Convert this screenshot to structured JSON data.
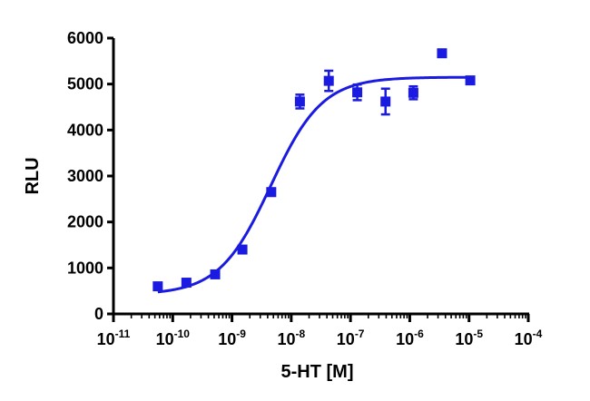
{
  "chart_data": {
    "type": "scatter",
    "title": "",
    "xlabel": "5-HT [M]",
    "ylabel": "RLU",
    "x_scale": "log",
    "xlim": [
      1e-11,
      0.0001
    ],
    "ylim": [
      0,
      6000
    ],
    "x_ticks": [
      {
        "base": "10",
        "exp": "-11",
        "value": 1e-11
      },
      {
        "base": "10",
        "exp": "-10",
        "value": 1e-10
      },
      {
        "base": "10",
        "exp": "-9",
        "value": 1e-09
      },
      {
        "base": "10",
        "exp": "-8",
        "value": 1e-08
      },
      {
        "base": "10",
        "exp": "-7",
        "value": 1e-07
      },
      {
        "base": "10",
        "exp": "-6",
        "value": 1e-06
      },
      {
        "base": "10",
        "exp": "-5",
        "value": 1e-05
      },
      {
        "base": "10",
        "exp": "-4",
        "value": 0.0001
      }
    ],
    "y_ticks": [
      {
        "label": "0",
        "value": 0
      },
      {
        "label": "1000",
        "value": 1000
      },
      {
        "label": "2000",
        "value": 2000
      },
      {
        "label": "3000",
        "value": 3000
      },
      {
        "label": "4000",
        "value": 4000
      },
      {
        "label": "5000",
        "value": 5000
      },
      {
        "label": "6000",
        "value": 6000
      }
    ],
    "color": "#1a1ae0",
    "grid": false,
    "legend": "none",
    "points": [
      {
        "x": 5.6e-11,
        "y": 600,
        "err": 40
      },
      {
        "x": 1.7e-10,
        "y": 680,
        "err": 40
      },
      {
        "x": 5.2e-10,
        "y": 860,
        "err": 40
      },
      {
        "x": 1.5e-09,
        "y": 1400,
        "err": 50
      },
      {
        "x": 4.6e-09,
        "y": 2650,
        "err": 80
      },
      {
        "x": 1.4e-08,
        "y": 4620,
        "err": 150
      },
      {
        "x": 4.3e-08,
        "y": 5070,
        "err": 220
      },
      {
        "x": 1.3e-07,
        "y": 4820,
        "err": 170
      },
      {
        "x": 3.9e-07,
        "y": 4620,
        "err": 280
      },
      {
        "x": 1.15e-06,
        "y": 4810,
        "err": 140
      },
      {
        "x": 3.5e-06,
        "y": 5670,
        "err": 60
      },
      {
        "x": 1.05e-05,
        "y": 5080,
        "err": 40
      }
    ],
    "fit": {
      "model": "sigmoidal dose-response",
      "bottom": 420,
      "top": 5150,
      "ec50": 4.5e-09,
      "hill": 1.0,
      "x_range": [
        5.6e-11,
        1.05e-05
      ]
    }
  }
}
